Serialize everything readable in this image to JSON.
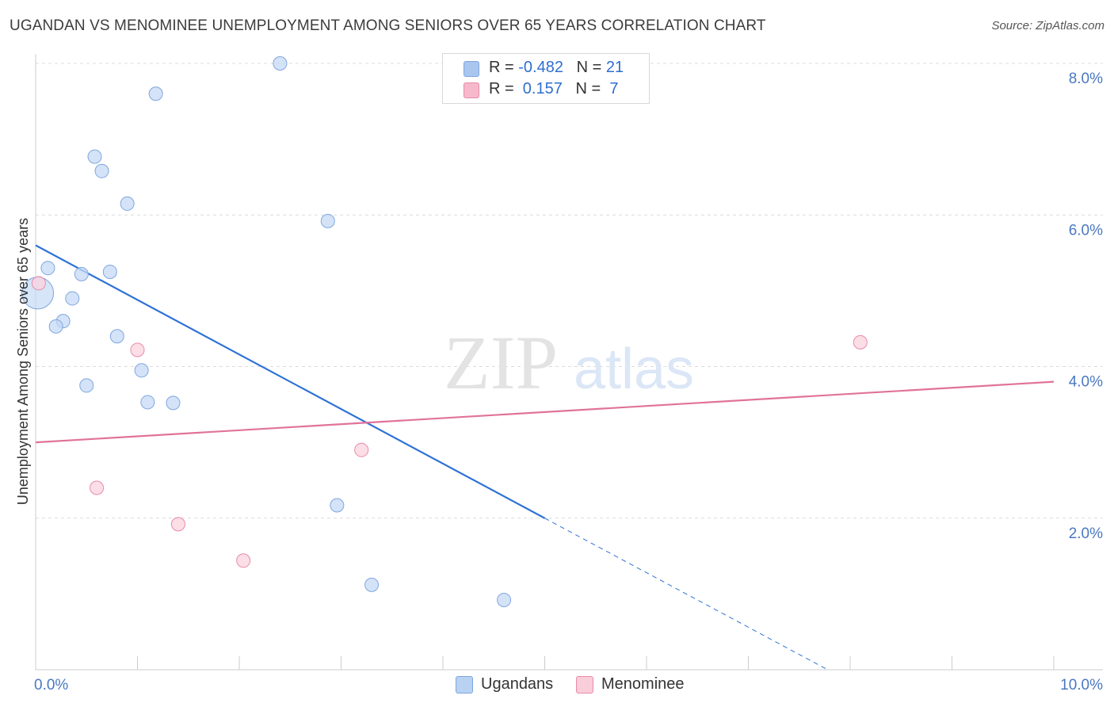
{
  "title": "UGANDAN VS MENOMINEE UNEMPLOYMENT AMONG SENIORS OVER 65 YEARS CORRELATION CHART",
  "source": "Source: ZipAtlas.com",
  "watermark": {
    "zip": "ZIP",
    "atlas": "atlas"
  },
  "legend": {
    "rows": [
      {
        "r_label": "R = ",
        "r_value": "-0.482",
        "n_label": "N = ",
        "n_value": "21",
        "color": "#a9c6ef"
      },
      {
        "r_label": "R = ",
        "r_value": " 0.157",
        "n_label": "N = ",
        "n_value": " 7",
        "color": "#f6b9cb"
      }
    ]
  },
  "bottom_legend": [
    {
      "label": "Ugandans",
      "color": "#b9d2f2",
      "border": "#7fa6de"
    },
    {
      "label": "Menominee",
      "color": "#f9cdda",
      "border": "#e98aa8"
    }
  ],
  "chart_data": {
    "type": "scatter",
    "title": "UGANDAN VS MENOMINEE UNEMPLOYMENT AMONG SENIORS OVER 65 YEARS CORRELATION CHART",
    "xlabel": "",
    "ylabel": "Unemployment Among Seniors over 65 years",
    "xlim": [
      0,
      10
    ],
    "ylim": [
      0,
      8
    ],
    "x_tick_labels": [
      {
        "value": 0,
        "label": "0.0%"
      },
      {
        "value": 10,
        "label": "10.0%"
      }
    ],
    "y_tick_labels": [
      {
        "value": 2,
        "label": "2.0%"
      },
      {
        "value": 4,
        "label": "4.0%"
      },
      {
        "value": 6,
        "label": "6.0%"
      },
      {
        "value": 8,
        "label": "8.0%"
      }
    ],
    "grid": "horizontal dashed",
    "legend_position": "top-center",
    "series": [
      {
        "name": "Ugandans",
        "color": "#7fa6de",
        "fill": "#c5daf5",
        "points": [
          {
            "x": 2.4,
            "y": 8.0
          },
          {
            "x": 1.18,
            "y": 7.6
          },
          {
            "x": 0.58,
            "y": 6.77
          },
          {
            "x": 0.65,
            "y": 6.58
          },
          {
            "x": 0.9,
            "y": 6.15
          },
          {
            "x": 2.87,
            "y": 5.92
          },
          {
            "x": 0.12,
            "y": 5.3
          },
          {
            "x": 0.45,
            "y": 5.22
          },
          {
            "x": 0.73,
            "y": 5.25
          },
          {
            "x": 0.02,
            "y": 4.97,
            "size": "large"
          },
          {
            "x": 0.36,
            "y": 4.9
          },
          {
            "x": 0.27,
            "y": 4.6
          },
          {
            "x": 0.2,
            "y": 4.53
          },
          {
            "x": 0.8,
            "y": 4.4
          },
          {
            "x": 1.04,
            "y": 3.95
          },
          {
            "x": 0.5,
            "y": 3.75
          },
          {
            "x": 1.1,
            "y": 3.53
          },
          {
            "x": 1.35,
            "y": 3.52
          },
          {
            "x": 2.96,
            "y": 2.17
          },
          {
            "x": 3.3,
            "y": 1.12
          },
          {
            "x": 4.6,
            "y": 0.92
          }
        ],
        "trend": {
          "x0": 0,
          "y0": 5.6,
          "x1": 5.0,
          "y1": 2.0,
          "dashed_to": {
            "x": 7.78,
            "y": 0.0
          }
        }
      },
      {
        "name": "Menominee",
        "color": "#e98aa8",
        "fill": "#fbd3df",
        "points": [
          {
            "x": 0.03,
            "y": 5.1
          },
          {
            "x": 1.0,
            "y": 4.22
          },
          {
            "x": 8.1,
            "y": 4.32
          },
          {
            "x": 3.2,
            "y": 2.9
          },
          {
            "x": 0.6,
            "y": 2.4
          },
          {
            "x": 1.4,
            "y": 1.92
          },
          {
            "x": 2.04,
            "y": 1.44
          }
        ],
        "trend": {
          "x0": 0,
          "y0": 3.0,
          "x1": 10,
          "y1": 3.8
        }
      }
    ]
  }
}
